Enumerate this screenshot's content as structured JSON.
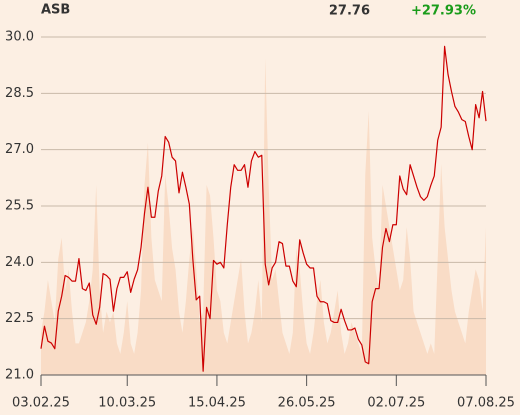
{
  "chart_data": {
    "type": "line",
    "title": "ASB",
    "last_value": "27.76",
    "change": "+27.93%",
    "change_color": "#1a9c1a",
    "background": "#fcefe3",
    "grid": true,
    "ylim": [
      21,
      30
    ],
    "yticks": [
      {
        "value": 21,
        "label": "21.0"
      },
      22.5,
      {
        "value": 24,
        "label": "24.0"
      },
      25.5,
      {
        "value": 27,
        "label": "27.0"
      },
      28.5,
      {
        "value": 30,
        "label": "30.0"
      }
    ],
    "xlim": [
      0,
      129
    ],
    "xticks": [
      {
        "value": 0,
        "label": "03.02.25"
      },
      {
        "value": 25,
        "label": "10.03.25"
      },
      {
        "value": 51,
        "label": "15.04.25"
      },
      {
        "value": 77,
        "label": "26.05.25"
      },
      {
        "value": 103,
        "label": "02.07.25"
      },
      {
        "value": 129,
        "label": "07.08.25"
      }
    ],
    "y2lim": [
      0,
      320
    ],
    "series": [
      {
        "color": "#cc0000",
        "values": [
          21.7,
          22.3,
          21.9,
          21.85,
          21.7,
          22.7,
          23.1,
          23.65,
          23.6,
          23.5,
          23.5,
          24.1,
          23.3,
          23.25,
          23.45,
          22.6,
          22.35,
          22.8,
          23.7,
          23.65,
          23.55,
          22.7,
          23.3,
          23.6,
          23.6,
          23.75,
          23.2,
          23.55,
          23.8,
          24.4,
          25.3,
          26.0,
          25.2,
          25.2,
          25.9,
          26.3,
          27.35,
          27.2,
          26.8,
          26.7,
          25.85,
          26.4,
          26.0,
          25.55,
          24.1,
          23.0,
          23.1,
          21.1,
          22.8,
          22.5,
          24.05,
          23.95,
          24.0,
          23.85,
          25.0,
          26.0,
          26.6,
          26.45,
          26.45,
          26.6,
          26.0,
          26.7,
          26.95,
          26.8,
          26.85,
          23.95,
          23.4,
          23.85,
          24.0,
          24.55,
          24.5,
          23.9,
          23.9,
          23.5,
          23.35,
          24.6,
          24.25,
          23.95,
          23.85,
          23.85,
          23.1,
          22.95,
          22.95,
          22.9,
          22.45,
          22.4,
          22.4,
          22.75,
          22.45,
          22.2,
          22.2,
          22.25,
          21.95,
          21.8,
          21.35,
          21.3,
          22.95,
          23.3,
          23.3,
          24.4,
          24.9,
          24.55,
          25.0,
          25.0,
          26.3,
          25.95,
          25.8,
          26.6,
          26.3,
          26.0,
          25.75,
          25.65,
          25.75,
          26.05,
          26.3,
          27.25,
          27.6,
          29.75,
          29.0,
          28.55,
          28.15,
          28.0,
          27.8,
          27.75,
          27.35,
          27.0,
          28.2,
          27.85,
          28.55,
          27.76
        ]
      },
      {
        "color": "#f9dcc6",
        "axis": "y2",
        "values": [
          40,
          60,
          90,
          70,
          50,
          110,
          130,
          80,
          100,
          60,
          30,
          30,
          40,
          50,
          70,
          100,
          180,
          80,
          40,
          60,
          50,
          60,
          30,
          20,
          40,
          70,
          30,
          20,
          40,
          80,
          180,
          220,
          130,
          90,
          80,
          70,
          190,
          160,
          120,
          100,
          60,
          40,
          70,
          110,
          140,
          100,
          50,
          60,
          180,
          170,
          130,
          80,
          70,
          40,
          30,
          50,
          70,
          90,
          110,
          60,
          30,
          40,
          60,
          90,
          50,
          300,
          180,
          90,
          100,
          70,
          40,
          30,
          20,
          40,
          120,
          100,
          60,
          30,
          20,
          40,
          70,
          90,
          50,
          30,
          40,
          60,
          80,
          40,
          20,
          30,
          50,
          40,
          30,
          20,
          190,
          250,
          130,
          100,
          80,
          180,
          160,
          140,
          120,
          100,
          80,
          90,
          140,
          110,
          60,
          50,
          40,
          30,
          20,
          30,
          20,
          110,
          200,
          140,
          110,
          80,
          60,
          50,
          40,
          30,
          60,
          80,
          100,
          90,
          60,
          140
        ]
      }
    ]
  }
}
